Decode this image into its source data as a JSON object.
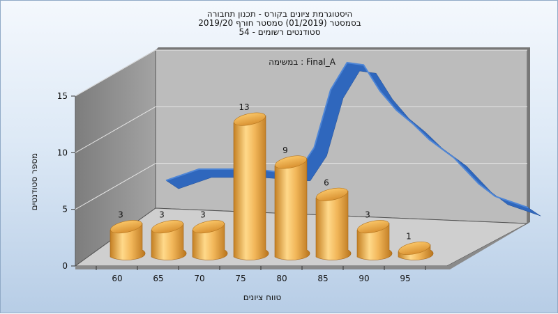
{
  "chart_data": {
    "type": "bar",
    "title_lines": [
      "היסטוגרמת ציונים בקורס - תכנון תחבורה",
      "בסמסטר  (01/2019)  סמסטר חורף 2019/20",
      "סטודנטים רשומים - 54"
    ],
    "annotation": "במשימה : Final_A",
    "xlabel": "טווח ציונים",
    "ylabel": "מספר סטודנטים",
    "categories": [
      "60",
      "65",
      "70",
      "75",
      "80",
      "85",
      "90",
      "95"
    ],
    "values": [
      3,
      3,
      3,
      13,
      9,
      6,
      3,
      1
    ],
    "yticks": [
      "0",
      "5",
      "10",
      "15"
    ],
    "ylim": [
      0,
      15
    ],
    "curve": {
      "x": [
        60,
        64,
        68,
        70,
        72,
        74,
        76,
        78,
        80,
        82,
        84,
        86,
        88,
        90,
        92,
        95,
        98,
        100,
        104
      ],
      "y": [
        4.6,
        5.6,
        5.6,
        5.6,
        5.5,
        5.3,
        5.3,
        7.5,
        12.6,
        15,
        14.8,
        12.5,
        10.8,
        9.6,
        8.2,
        6.6,
        4.3,
        3.2,
        2.2
      ]
    },
    "colors": {
      "bar": "#e8a845",
      "curve": "#2f67bd",
      "back_wall": "#bdbdbd",
      "side_wall": "#8a8a8a",
      "floor": "#d2d2d2"
    }
  }
}
